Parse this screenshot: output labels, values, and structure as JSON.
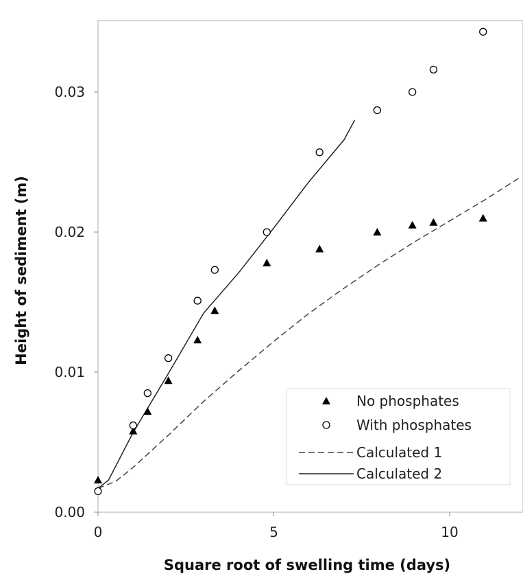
{
  "chart_data": {
    "type": "scatter",
    "xlabel": "Square root of swelling time (days)",
    "ylabel": "Height of sediment (m)",
    "xlim": [
      0,
      12
    ],
    "ylim": [
      0,
      0.035
    ],
    "x_ticks": [
      0,
      5,
      10
    ],
    "x_tick_labels": [
      "0",
      "5",
      "10"
    ],
    "y_ticks": [
      0,
      0.01,
      0.02,
      0.03
    ],
    "y_tick_labels": [
      "0.00",
      "0.01",
      "0.02",
      "0.03"
    ],
    "grid": false,
    "legend_position": "bottom-right",
    "series": [
      {
        "name": "No phosphates",
        "kind": "scatter",
        "marker": "filled-triangle",
        "color": "#000000",
        "points": [
          [
            0,
            0.0023
          ],
          [
            1,
            0.0058
          ],
          [
            1.41,
            0.0072
          ],
          [
            2,
            0.0094
          ],
          [
            2.83,
            0.0123
          ],
          [
            3.32,
            0.0144
          ],
          [
            4.8,
            0.0178
          ],
          [
            6.3,
            0.0188
          ],
          [
            7.94,
            0.02
          ],
          [
            8.94,
            0.0205
          ],
          [
            9.54,
            0.0207
          ],
          [
            10.95,
            0.021
          ]
        ]
      },
      {
        "name": "With phosphates",
        "kind": "scatter",
        "marker": "open-circle",
        "color": "#000000",
        "points": [
          [
            0,
            0.0015
          ],
          [
            1,
            0.0062
          ],
          [
            1.41,
            0.0085
          ],
          [
            2,
            0.011
          ],
          [
            2.83,
            0.0151
          ],
          [
            3.32,
            0.0173
          ],
          [
            4.8,
            0.02
          ],
          [
            6.3,
            0.0257
          ],
          [
            7.94,
            0.0287
          ],
          [
            8.94,
            0.03
          ],
          [
            9.54,
            0.0316
          ],
          [
            10.95,
            0.0343
          ]
        ]
      },
      {
        "name": "Calculated 1",
        "kind": "line",
        "style": "dashed",
        "color": "#444444",
        "points": [
          [
            0,
            0.0017
          ],
          [
            0.5,
            0.0022
          ],
          [
            1,
            0.0032
          ],
          [
            2,
            0.0055
          ],
          [
            3,
            0.0079
          ],
          [
            4,
            0.0101
          ],
          [
            5,
            0.0122
          ],
          [
            6,
            0.0142
          ],
          [
            7,
            0.016
          ],
          [
            8,
            0.0177
          ],
          [
            9,
            0.0193
          ],
          [
            10,
            0.0208
          ],
          [
            11,
            0.0223
          ],
          [
            12,
            0.0239
          ]
        ]
      },
      {
        "name": "Calculated 2",
        "kind": "line",
        "style": "solid",
        "color": "#222222",
        "points": [
          [
            0,
            0.0017
          ],
          [
            0.3,
            0.0023
          ],
          [
            1,
            0.0057
          ],
          [
            2,
            0.0099
          ],
          [
            3,
            0.0142
          ],
          [
            4,
            0.0171
          ],
          [
            5,
            0.0203
          ],
          [
            6,
            0.0236
          ],
          [
            7,
            0.0266
          ],
          [
            7.3,
            0.028
          ]
        ]
      }
    ]
  }
}
